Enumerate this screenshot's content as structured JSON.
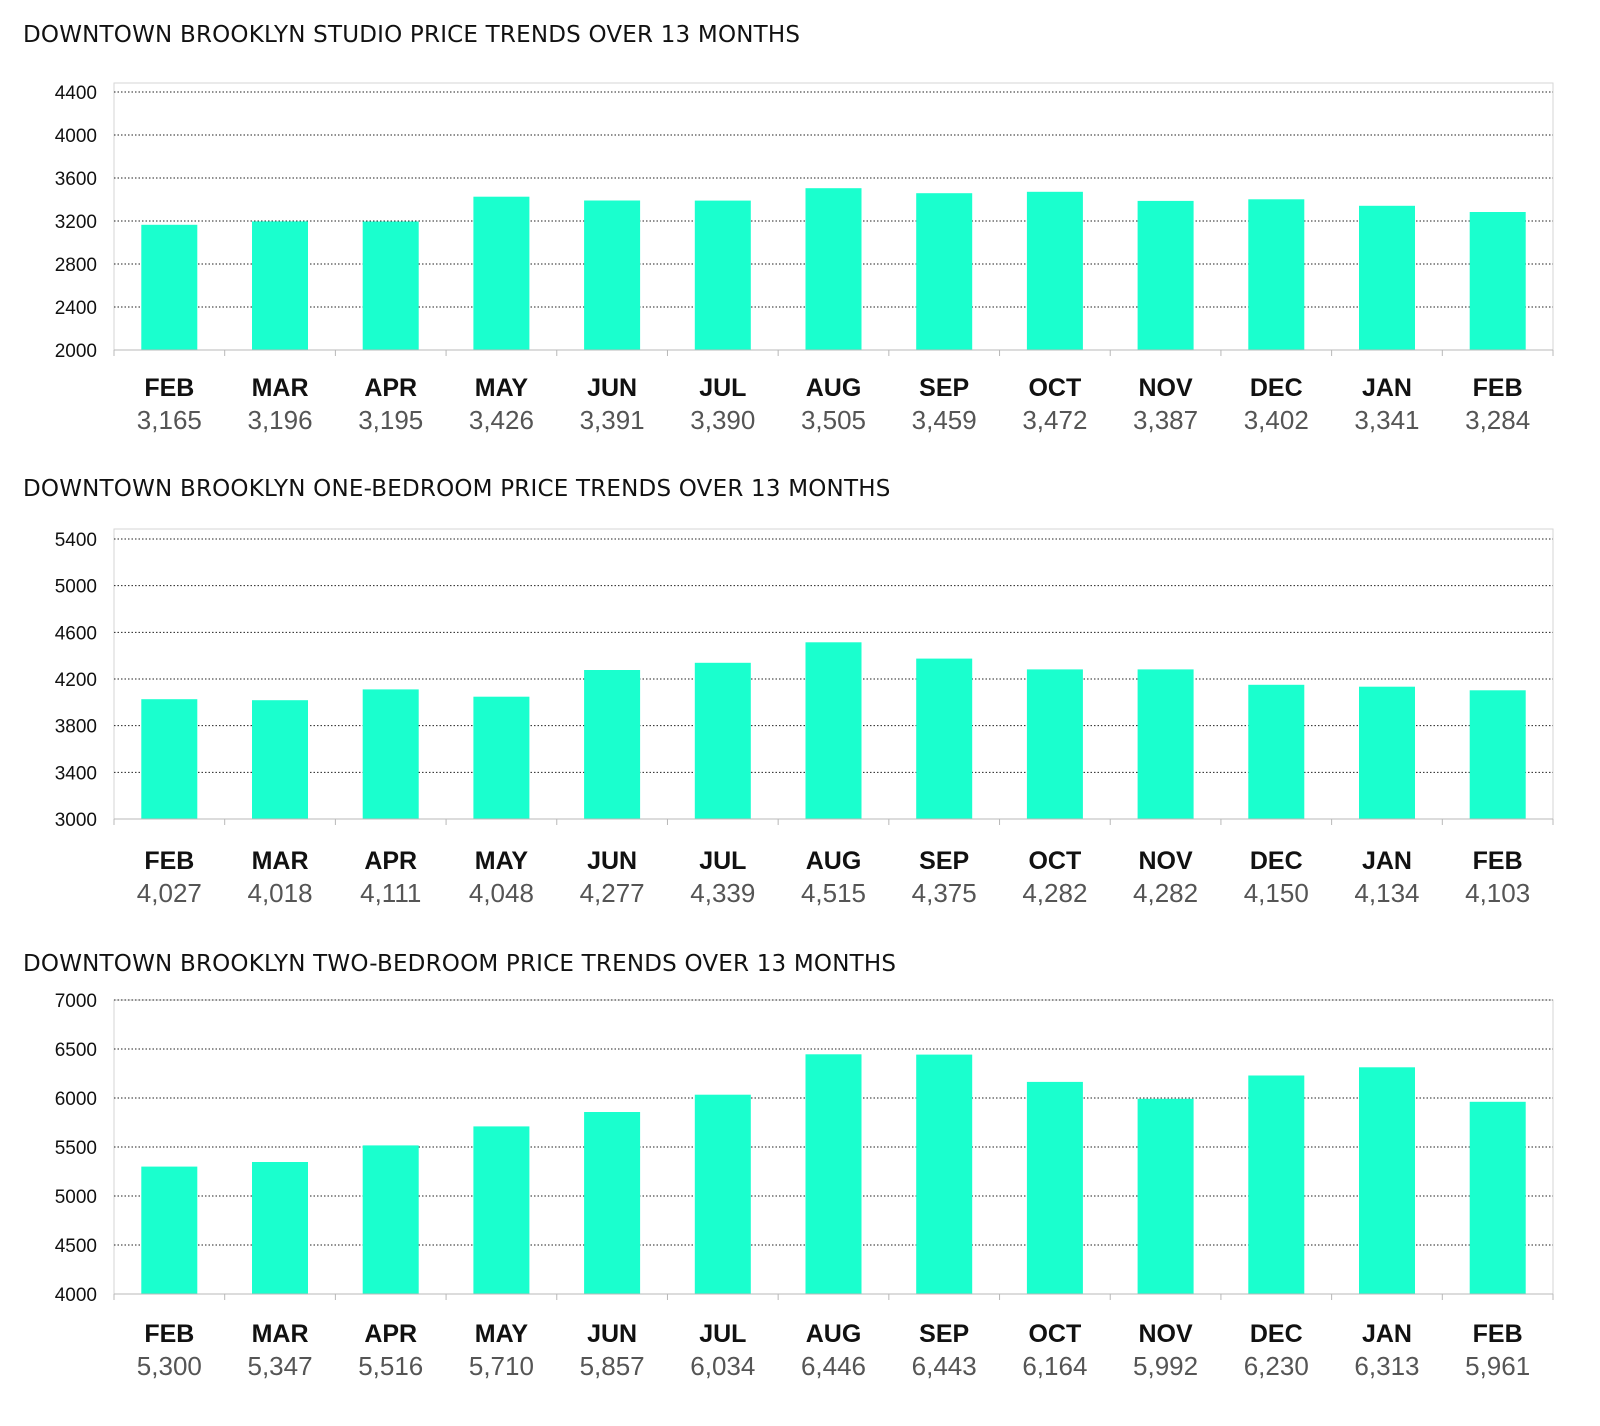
{
  "colors": {
    "bar": "#1affce",
    "text": "#111111",
    "value_text": "#555555"
  },
  "chart_data": [
    {
      "type": "bar",
      "title": "DOWNTOWN BROOKLYN STUDIO PRICE TRENDS OVER 13 MONTHS",
      "xlabel": "",
      "ylabel": "",
      "categories": [
        "FEB",
        "MAR",
        "APR",
        "MAY",
        "JUN",
        "JUL",
        "AUG",
        "SEP",
        "OCT",
        "NOV",
        "DEC",
        "JAN",
        "FEB"
      ],
      "values": [
        3165,
        3196,
        3195,
        3426,
        3391,
        3390,
        3505,
        3459,
        3472,
        3387,
        3402,
        3341,
        3284
      ],
      "value_labels": [
        "3,165",
        "3,196",
        "3,195",
        "3,426",
        "3,391",
        "3,390",
        "3,505",
        "3,459",
        "3,472",
        "3,387",
        "3,402",
        "3,341",
        "3,284"
      ],
      "ylim": [
        2000,
        4400
      ],
      "yticks": [
        2000,
        2400,
        2800,
        3200,
        3600,
        4000,
        4400
      ],
      "ytick_labels": [
        "2000",
        "2400",
        "2800",
        "3200",
        "3600",
        "4000",
        "4400"
      ],
      "grid": true,
      "legend": "none"
    },
    {
      "type": "bar",
      "title": "DOWNTOWN BROOKLYN ONE-BEDROOM PRICE TRENDS OVER 13 MONTHS",
      "xlabel": "",
      "ylabel": "",
      "categories": [
        "FEB",
        "MAR",
        "APR",
        "MAY",
        "JUN",
        "JUL",
        "AUG",
        "SEP",
        "OCT",
        "NOV",
        "DEC",
        "JAN",
        "FEB"
      ],
      "values": [
        4027,
        4018,
        4111,
        4048,
        4277,
        4339,
        4515,
        4375,
        4282,
        4282,
        4150,
        4134,
        4103
      ],
      "value_labels": [
        "4,027",
        "4,018",
        "4,111",
        "4,048",
        "4,277",
        "4,339",
        "4,515",
        "4,375",
        "4,282",
        "4,282",
        "4,150",
        "4,134",
        "4,103"
      ],
      "ylim": [
        3000,
        5400
      ],
      "yticks": [
        3000,
        3400,
        3800,
        4200,
        4600,
        5000,
        5400
      ],
      "ytick_labels": [
        "3000",
        "3400",
        "3800",
        "4200",
        "4600",
        "5000",
        "5400"
      ],
      "grid": true,
      "legend": "none"
    },
    {
      "type": "bar",
      "title": "DOWNTOWN BROOKLYN TWO-BEDROOM PRICE TRENDS OVER 13 MONTHS",
      "xlabel": "",
      "ylabel": "",
      "categories": [
        "FEB",
        "MAR",
        "APR",
        "MAY",
        "JUN",
        "JUL",
        "AUG",
        "SEP",
        "OCT",
        "NOV",
        "DEC",
        "JAN",
        "FEB"
      ],
      "values": [
        5300,
        5347,
        5516,
        5710,
        5857,
        6034,
        6446,
        6443,
        6164,
        5992,
        6230,
        6313,
        5961
      ],
      "value_labels": [
        "5,300",
        "5,347",
        "5,516",
        "5,710",
        "5,857",
        "6,034",
        "6,446",
        "6,443",
        "6,164",
        "5,992",
        "6,230",
        "6,313",
        "5,961"
      ],
      "ylim": [
        4000,
        7000
      ],
      "yticks": [
        4000,
        4500,
        5000,
        5500,
        6000,
        6500,
        7000
      ],
      "ytick_labels": [
        "4000",
        "4500",
        "5000",
        "5500",
        "6000",
        "6500",
        "7000"
      ],
      "grid": true,
      "legend": "none"
    }
  ]
}
